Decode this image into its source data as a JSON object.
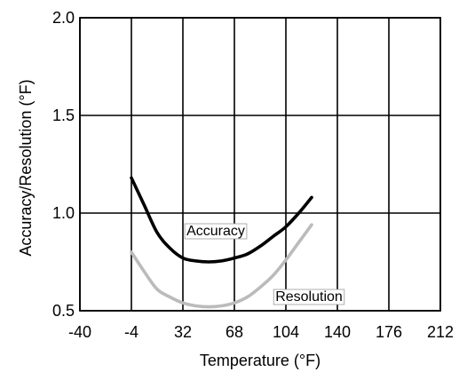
{
  "chart_data": {
    "type": "line",
    "title": "",
    "xlabel": "Temperature (°F)",
    "ylabel": "Accuracy/Resolution (°F)",
    "xlim": [
      -40,
      212
    ],
    "ylim": [
      0.5,
      2.0
    ],
    "x_ticks": [
      -40,
      -4,
      32,
      68,
      104,
      140,
      176,
      212
    ],
    "x_tick_labels": [
      "-40",
      "-4",
      "32",
      "68",
      "104",
      "140",
      "176",
      "212"
    ],
    "y_ticks": [
      0.5,
      1.0,
      1.5,
      2.0
    ],
    "y_tick_labels": [
      "0.5",
      "1.0",
      "1.5",
      "2.0"
    ],
    "grid": true,
    "legend": "none",
    "series": [
      {
        "name": "Accuracy",
        "color": "#000000",
        "x": [
          -4,
          5,
          14,
          23,
          32,
          41,
          50,
          59,
          68,
          77,
          86,
          95,
          104,
          113,
          122
        ],
        "y": [
          1.18,
          1.04,
          0.9,
          0.82,
          0.77,
          0.755,
          0.75,
          0.755,
          0.77,
          0.79,
          0.83,
          0.88,
          0.93,
          1.0,
          1.08
        ]
      },
      {
        "name": "Resolution",
        "color": "#bbbbbb",
        "x": [
          -4,
          5,
          14,
          23,
          32,
          41,
          50,
          59,
          68,
          77,
          86,
          95,
          104,
          113,
          122
        ],
        "y": [
          0.8,
          0.7,
          0.61,
          0.57,
          0.54,
          0.525,
          0.52,
          0.525,
          0.54,
          0.57,
          0.62,
          0.68,
          0.76,
          0.85,
          0.94
        ]
      }
    ]
  }
}
